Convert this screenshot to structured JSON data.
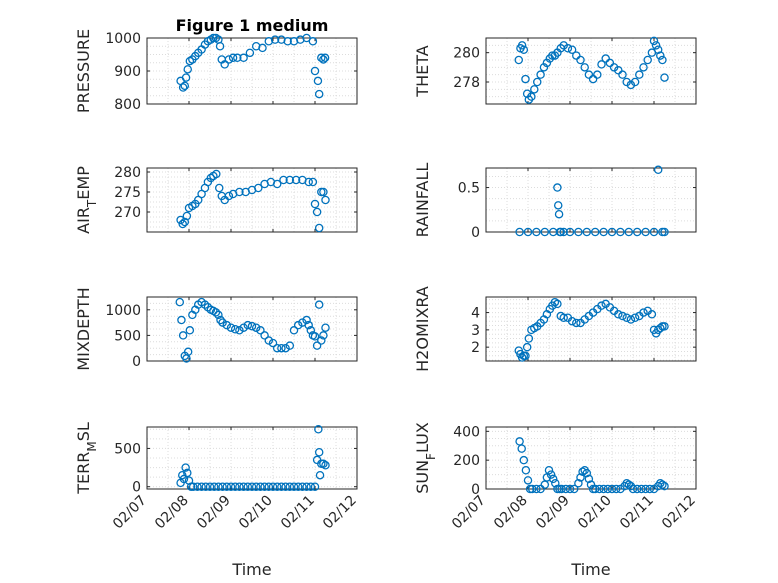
{
  "figure_title": "Figure 1 medium",
  "marker_color": "#0072BD",
  "chart_data": [
    {
      "type": "scatter",
      "title": "Figure 1 medium",
      "ylabel": "PRESSURE",
      "xlabel": "",
      "ylim": [
        800,
        1000
      ],
      "yticks": [
        800,
        900,
        1000
      ],
      "ytick_labels": [
        "800",
        "900",
        "1000"
      ],
      "xlim": [
        0,
        5
      ],
      "grid": true,
      "show_xticklabels": false,
      "series": [
        {
          "x": [
            0.8,
            0.86,
            0.9,
            0.93,
            0.97,
            1.02,
            1.08,
            1.15,
            1.22,
            1.3,
            1.38,
            1.45,
            1.52,
            1.58,
            1.64,
            1.7,
            1.74,
            1.78,
            1.85,
            1.95,
            2.05,
            2.15,
            2.3,
            2.45,
            2.6,
            2.75,
            2.9,
            3.05,
            3.2,
            3.35,
            3.5,
            3.65,
            3.8,
            3.95,
            4.0,
            4.07,
            4.1,
            4.15,
            4.2,
            4.24
          ],
          "y": [
            870,
            850,
            855,
            880,
            905,
            930,
            935,
            945,
            955,
            965,
            980,
            990,
            995,
            1000,
            1000,
            995,
            975,
            935,
            920,
            935,
            940,
            940,
            940,
            955,
            975,
            970,
            990,
            995,
            995,
            990,
            990,
            995,
            1000,
            990,
            900,
            870,
            830,
            940,
            935,
            940
          ]
        }
      ]
    },
    {
      "type": "scatter",
      "title": "",
      "ylabel": "THETA",
      "xlabel": "",
      "ylim": [
        276.5,
        281
      ],
      "yticks": [
        278,
        280
      ],
      "ytick_labels": [
        "278",
        "280"
      ],
      "xlim": [
        0,
        5
      ],
      "grid": true,
      "show_xticklabels": false,
      "series": [
        {
          "x": [
            0.78,
            0.82,
            0.86,
            0.9,
            0.94,
            0.98,
            1.02,
            1.08,
            1.15,
            1.22,
            1.3,
            1.38,
            1.45,
            1.52,
            1.58,
            1.64,
            1.7,
            1.78,
            1.85,
            1.95,
            2.05,
            2.15,
            2.25,
            2.35,
            2.45,
            2.55,
            2.65,
            2.75,
            2.85,
            2.95,
            3.05,
            3.15,
            3.25,
            3.35,
            3.45,
            3.55,
            3.65,
            3.75,
            3.85,
            3.95,
            4.0,
            4.05,
            4.1,
            4.15,
            4.2,
            4.25
          ],
          "y": [
            279.5,
            280.3,
            280.5,
            280.2,
            278.2,
            277.2,
            276.8,
            277.0,
            277.5,
            278.0,
            278.5,
            279.0,
            279.3,
            279.6,
            279.8,
            279.8,
            280.0,
            280.3,
            280.5,
            280.3,
            280.2,
            279.8,
            279.5,
            279.0,
            278.5,
            278.2,
            278.5,
            279.2,
            279.6,
            279.3,
            279.0,
            278.8,
            278.5,
            278.0,
            277.8,
            278.0,
            278.5,
            279.0,
            279.5,
            280.0,
            280.8,
            280.5,
            280.2,
            279.8,
            279.5,
            278.3
          ]
        }
      ]
    },
    {
      "type": "scatter",
      "title": "",
      "ylabel": "AIR_TEMP",
      "xlabel": "",
      "ylim": [
        265,
        281
      ],
      "yticks": [
        270,
        275,
        280
      ],
      "ytick_labels": [
        "270",
        "275",
        "280"
      ],
      "xlim": [
        0,
        5
      ],
      "grid": true,
      "show_xticklabels": false,
      "series": [
        {
          "x": [
            0.8,
            0.85,
            0.9,
            0.95,
            1.0,
            1.08,
            1.15,
            1.22,
            1.3,
            1.38,
            1.45,
            1.52,
            1.58,
            1.65,
            1.72,
            1.78,
            1.85,
            1.95,
            2.05,
            2.2,
            2.35,
            2.5,
            2.65,
            2.8,
            2.95,
            3.1,
            3.25,
            3.4,
            3.55,
            3.7,
            3.85,
            3.95,
            4.0,
            4.05,
            4.1,
            4.15,
            4.2,
            4.25
          ],
          "y": [
            268,
            267,
            267.5,
            269,
            271,
            271.5,
            272,
            273,
            274.5,
            276,
            277.5,
            278.5,
            279,
            279.5,
            276,
            274,
            273,
            274,
            274.5,
            275,
            275,
            275.5,
            276,
            277,
            277.5,
            277,
            278,
            278,
            278,
            278,
            277.5,
            277.5,
            272,
            270,
            266,
            275,
            275,
            273
          ]
        }
      ]
    },
    {
      "type": "scatter",
      "title": "",
      "ylabel": "RAINFALL",
      "xlabel": "",
      "ylim": [
        0,
        0.72
      ],
      "yticks": [
        0,
        0.5
      ],
      "ytick_labels": [
        "0",
        "0.5"
      ],
      "xlim": [
        0,
        5
      ],
      "grid": true,
      "show_xticklabels": false,
      "series": [
        {
          "x": [
            0.8,
            1.0,
            1.2,
            1.4,
            1.6,
            1.7,
            1.72,
            1.74,
            1.76,
            1.78,
            1.85,
            2.0,
            2.2,
            2.4,
            2.6,
            2.8,
            3.0,
            3.2,
            3.4,
            3.6,
            3.8,
            4.0,
            4.1,
            4.2,
            4.25
          ],
          "y": [
            0,
            0,
            0,
            0,
            0,
            0.5,
            0.3,
            0.2,
            0,
            0,
            0,
            0,
            0,
            0,
            0,
            0,
            0,
            0,
            0,
            0,
            0,
            0,
            0.7,
            0,
            0
          ]
        }
      ]
    },
    {
      "type": "scatter",
      "title": "",
      "ylabel": "MIXDEPTH",
      "xlabel": "",
      "ylim": [
        0,
        1250
      ],
      "yticks": [
        0,
        500,
        1000
      ],
      "ytick_labels": [
        "0",
        "500",
        "1000"
      ],
      "xlim": [
        0,
        5
      ],
      "grid": true,
      "show_xticklabels": false,
      "series": [
        {
          "x": [
            0.78,
            0.82,
            0.86,
            0.9,
            0.94,
            0.98,
            1.02,
            1.08,
            1.15,
            1.22,
            1.3,
            1.38,
            1.45,
            1.52,
            1.58,
            1.64,
            1.7,
            1.75,
            1.8,
            1.9,
            2.0,
            2.1,
            2.2,
            2.3,
            2.4,
            2.5,
            2.6,
            2.7,
            2.8,
            2.9,
            3.0,
            3.1,
            3.2,
            3.3,
            3.4,
            3.5,
            3.6,
            3.7,
            3.8,
            3.85,
            3.9,
            3.95,
            4.0,
            4.05,
            4.1,
            4.15,
            4.2,
            4.25
          ],
          "y": [
            1150,
            800,
            500,
            100,
            50,
            180,
            600,
            900,
            1000,
            1100,
            1150,
            1100,
            1050,
            1000,
            980,
            950,
            900,
            800,
            750,
            700,
            650,
            620,
            600,
            650,
            700,
            680,
            650,
            600,
            500,
            400,
            350,
            250,
            250,
            250,
            300,
            600,
            700,
            750,
            800,
            700,
            600,
            500,
            480,
            300,
            1100,
            400,
            500,
            650
          ]
        }
      ]
    },
    {
      "type": "scatter",
      "title": "",
      "ylabel": "H2OMIXRA",
      "xlabel": "",
      "ylim": [
        1.2,
        4.9
      ],
      "yticks": [
        2,
        3,
        4
      ],
      "ytick_labels": [
        "2",
        "3",
        "4"
      ],
      "xlim": [
        0,
        5
      ],
      "grid": true,
      "show_xticklabels": false,
      "series": [
        {
          "x": [
            0.78,
            0.82,
            0.86,
            0.9,
            0.94,
            0.98,
            1.02,
            1.08,
            1.15,
            1.22,
            1.3,
            1.38,
            1.45,
            1.52,
            1.58,
            1.64,
            1.7,
            1.78,
            1.85,
            1.95,
            2.05,
            2.15,
            2.25,
            2.35,
            2.45,
            2.55,
            2.65,
            2.75,
            2.85,
            2.95,
            3.05,
            3.15,
            3.25,
            3.35,
            3.45,
            3.55,
            3.65,
            3.75,
            3.85,
            3.95,
            4.0,
            4.05,
            4.1,
            4.15,
            4.2,
            4.25
          ],
          "y": [
            1.8,
            1.6,
            1.4,
            1.5,
            1.5,
            2.0,
            2.5,
            3.0,
            3.1,
            3.2,
            3.4,
            3.6,
            3.9,
            4.2,
            4.4,
            4.6,
            4.5,
            3.8,
            3.7,
            3.7,
            3.5,
            3.4,
            3.4,
            3.6,
            3.8,
            4.0,
            4.2,
            4.4,
            4.5,
            4.3,
            4.1,
            3.9,
            3.8,
            3.7,
            3.6,
            3.7,
            3.8,
            4.0,
            4.1,
            3.9,
            3.0,
            2.8,
            3.0,
            3.1,
            3.2,
            3.2
          ]
        }
      ]
    },
    {
      "type": "scatter",
      "title": "",
      "ylabel": "TERR_MSL",
      "xlabel": "Time",
      "ylim": [
        -30,
        780
      ],
      "yticks": [
        0,
        500
      ],
      "ytick_labels": [
        "0",
        "500"
      ],
      "xlim": [
        0,
        5
      ],
      "grid": true,
      "show_xticklabels": true,
      "xticks": [
        0,
        1,
        2,
        3,
        4,
        5
      ],
      "xtick_labels": [
        "02/07",
        "02/08",
        "02/09",
        "02/10",
        "02/11",
        "02/12"
      ],
      "series": [
        {
          "x": [
            0.8,
            0.84,
            0.88,
            0.92,
            0.96,
            1.0,
            1.05,
            1.1,
            1.2,
            1.3,
            1.4,
            1.5,
            1.6,
            1.7,
            1.8,
            1.9,
            2.0,
            2.1,
            2.2,
            2.3,
            2.4,
            2.5,
            2.6,
            2.7,
            2.8,
            2.9,
            3.0,
            3.1,
            3.2,
            3.3,
            3.4,
            3.5,
            3.6,
            3.7,
            3.8,
            3.9,
            4.0,
            4.05,
            4.08,
            4.1,
            4.12,
            4.15,
            4.2,
            4.25
          ],
          "y": [
            50,
            150,
            100,
            250,
            180,
            80,
            0,
            0,
            0,
            0,
            0,
            0,
            0,
            0,
            0,
            0,
            0,
            0,
            0,
            0,
            0,
            0,
            0,
            0,
            0,
            0,
            0,
            0,
            0,
            0,
            0,
            0,
            0,
            0,
            0,
            0,
            0,
            350,
            750,
            450,
            150,
            300,
            300,
            280
          ]
        }
      ]
    },
    {
      "type": "scatter",
      "title": "",
      "ylabel": "SUN_FLUX",
      "xlabel": "Time",
      "ylim": [
        0,
        430
      ],
      "yticks": [
        0,
        200,
        400
      ],
      "ytick_labels": [
        "0",
        "200",
        "400"
      ],
      "xlim": [
        0,
        5
      ],
      "grid": true,
      "show_xticklabels": true,
      "xticks": [
        0,
        1,
        2,
        3,
        4,
        5
      ],
      "xtick_labels": [
        "02/07",
        "02/08",
        "02/09",
        "02/10",
        "02/11",
        "02/12"
      ],
      "series": [
        {
          "x": [
            0.8,
            0.85,
            0.9,
            0.95,
            1.0,
            1.05,
            1.1,
            1.2,
            1.3,
            1.4,
            1.45,
            1.5,
            1.55,
            1.6,
            1.65,
            1.7,
            1.75,
            1.8,
            1.9,
            2.0,
            2.1,
            2.2,
            2.25,
            2.3,
            2.35,
            2.4,
            2.45,
            2.5,
            2.55,
            2.6,
            2.7,
            2.8,
            2.9,
            3.0,
            3.1,
            3.2,
            3.3,
            3.35,
            3.4,
            3.45,
            3.5,
            3.6,
            3.7,
            3.8,
            3.9,
            4.0,
            4.1,
            4.15,
            4.2,
            4.25
          ],
          "y": [
            330,
            280,
            200,
            130,
            60,
            0,
            0,
            0,
            0,
            30,
            80,
            130,
            100,
            70,
            40,
            0,
            0,
            0,
            0,
            0,
            0,
            40,
            80,
            120,
            130,
            110,
            70,
            30,
            0,
            0,
            0,
            0,
            0,
            0,
            0,
            0,
            20,
            40,
            30,
            20,
            0,
            0,
            0,
            0,
            0,
            0,
            20,
            40,
            30,
            20
          ]
        }
      ]
    }
  ]
}
